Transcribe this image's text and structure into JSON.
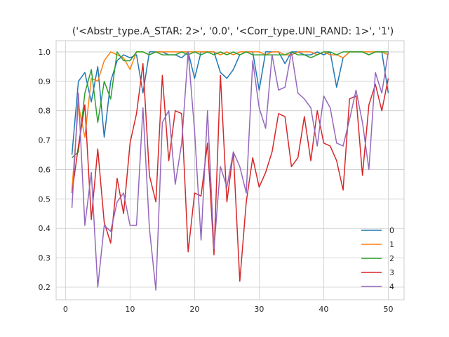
{
  "chart_data": {
    "type": "line",
    "title": "('<Abstr_type.A_STAR: 2>', '0.0', '<Corr_type.UNI_RAND: 1>', '1')",
    "xlabel": "",
    "ylabel": "",
    "xlim": [
      -1.45,
      52.45
    ],
    "ylim": [
      0.157,
      1.038
    ],
    "xticks": [
      0,
      10,
      20,
      30,
      40,
      50
    ],
    "yticks": [
      0.2,
      0.3,
      0.4,
      0.5,
      0.6,
      0.7,
      0.8,
      0.9,
      1.0
    ],
    "ytick_labels": [
      "0.2",
      "0.3",
      "0.4",
      "0.5",
      "0.6",
      "0.7",
      "0.8",
      "0.9",
      "1.0"
    ],
    "grid": true,
    "legend_position": "lower-right",
    "x": [
      1,
      2,
      3,
      4,
      5,
      6,
      7,
      8,
      9,
      10,
      11,
      12,
      13,
      14,
      15,
      16,
      17,
      18,
      19,
      20,
      21,
      22,
      23,
      24,
      25,
      26,
      27,
      28,
      29,
      30,
      31,
      32,
      33,
      34,
      35,
      36,
      37,
      38,
      39,
      40,
      41,
      42,
      43,
      44,
      45,
      46,
      47,
      48,
      49,
      50
    ],
    "series": [
      {
        "name": "0",
        "color": "#1f77b4",
        "values": [
          0.65,
          0.9,
          0.93,
          0.83,
          0.95,
          0.71,
          0.9,
          0.97,
          0.99,
          0.98,
          0.99,
          0.86,
          1.0,
          1.0,
          1.0,
          0.99,
          0.99,
          0.98,
          1.0,
          0.91,
          1.0,
          1.0,
          1.0,
          0.93,
          0.91,
          0.94,
          0.99,
          1.0,
          1.0,
          0.87,
          1.0,
          1.0,
          1.0,
          0.96,
          1.0,
          1.0,
          0.99,
          0.99,
          1.0,
          0.99,
          1.0,
          0.88,
          0.98,
          1.0,
          1.0,
          1.0,
          0.99,
          1.0,
          1.0,
          0.86
        ]
      },
      {
        "name": "1",
        "color": "#ff7f0e",
        "values": [
          0.53,
          0.82,
          0.71,
          0.91,
          0.9,
          0.97,
          1.0,
          0.99,
          0.98,
          0.94,
          1.0,
          1.0,
          0.99,
          1.0,
          1.0,
          1.0,
          1.0,
          1.0,
          1.0,
          1.0,
          1.0,
          1.0,
          1.0,
          0.99,
          1.0,
          0.99,
          1.0,
          1.0,
          1.0,
          1.0,
          0.99,
          1.0,
          1.0,
          0.99,
          0.99,
          1.0,
          1.0,
          1.0,
          0.99,
          1.0,
          0.99,
          0.99,
          0.98,
          1.0,
          1.0,
          1.0,
          1.0,
          1.0,
          1.0,
          0.99
        ]
      },
      {
        "name": "2",
        "color": "#2ca02c",
        "values": [
          0.64,
          0.66,
          0.86,
          0.94,
          0.76,
          0.9,
          0.84,
          1.0,
          0.97,
          0.97,
          1.0,
          1.0,
          0.99,
          1.0,
          0.99,
          0.99,
          0.99,
          1.0,
          0.99,
          1.0,
          0.99,
          1.0,
          0.99,
          1.0,
          0.99,
          1.0,
          0.99,
          1.0,
          0.99,
          0.99,
          0.99,
          0.99,
          0.99,
          0.99,
          1.0,
          0.99,
          0.99,
          0.98,
          0.99,
          1.0,
          1.0,
          0.99,
          1.0,
          1.0,
          1.0,
          1.0,
          0.99,
          1.0,
          1.0,
          1.0
        ]
      },
      {
        "name": "3",
        "color": "#d62728",
        "values": [
          0.52,
          0.68,
          0.82,
          0.43,
          0.67,
          0.42,
          0.35,
          0.57,
          0.45,
          0.69,
          0.79,
          0.96,
          0.58,
          0.49,
          0.92,
          0.63,
          0.8,
          0.79,
          0.32,
          0.52,
          0.51,
          0.69,
          0.31,
          0.92,
          0.49,
          0.66,
          0.22,
          0.49,
          0.64,
          0.54,
          0.59,
          0.66,
          0.79,
          0.78,
          0.61,
          0.64,
          0.78,
          0.63,
          0.8,
          0.69,
          0.68,
          0.63,
          0.53,
          0.84,
          0.85,
          0.58,
          0.82,
          0.89,
          0.8,
          0.91
        ]
      },
      {
        "name": "4",
        "color": "#9467bd",
        "values": [
          0.47,
          0.86,
          0.41,
          0.59,
          0.2,
          0.41,
          0.39,
          0.49,
          0.52,
          0.41,
          0.41,
          0.81,
          0.4,
          0.19,
          0.76,
          0.8,
          0.55,
          0.69,
          1.0,
          0.73,
          0.36,
          0.8,
          0.33,
          0.61,
          0.54,
          0.66,
          0.61,
          0.52,
          0.97,
          0.81,
          0.74,
          0.99,
          0.87,
          0.88,
          1.0,
          0.86,
          0.84,
          0.81,
          0.68,
          0.85,
          0.81,
          0.69,
          0.68,
          0.77,
          0.87,
          0.76,
          0.6,
          0.93,
          0.86,
          1.0
        ]
      }
    ]
  }
}
